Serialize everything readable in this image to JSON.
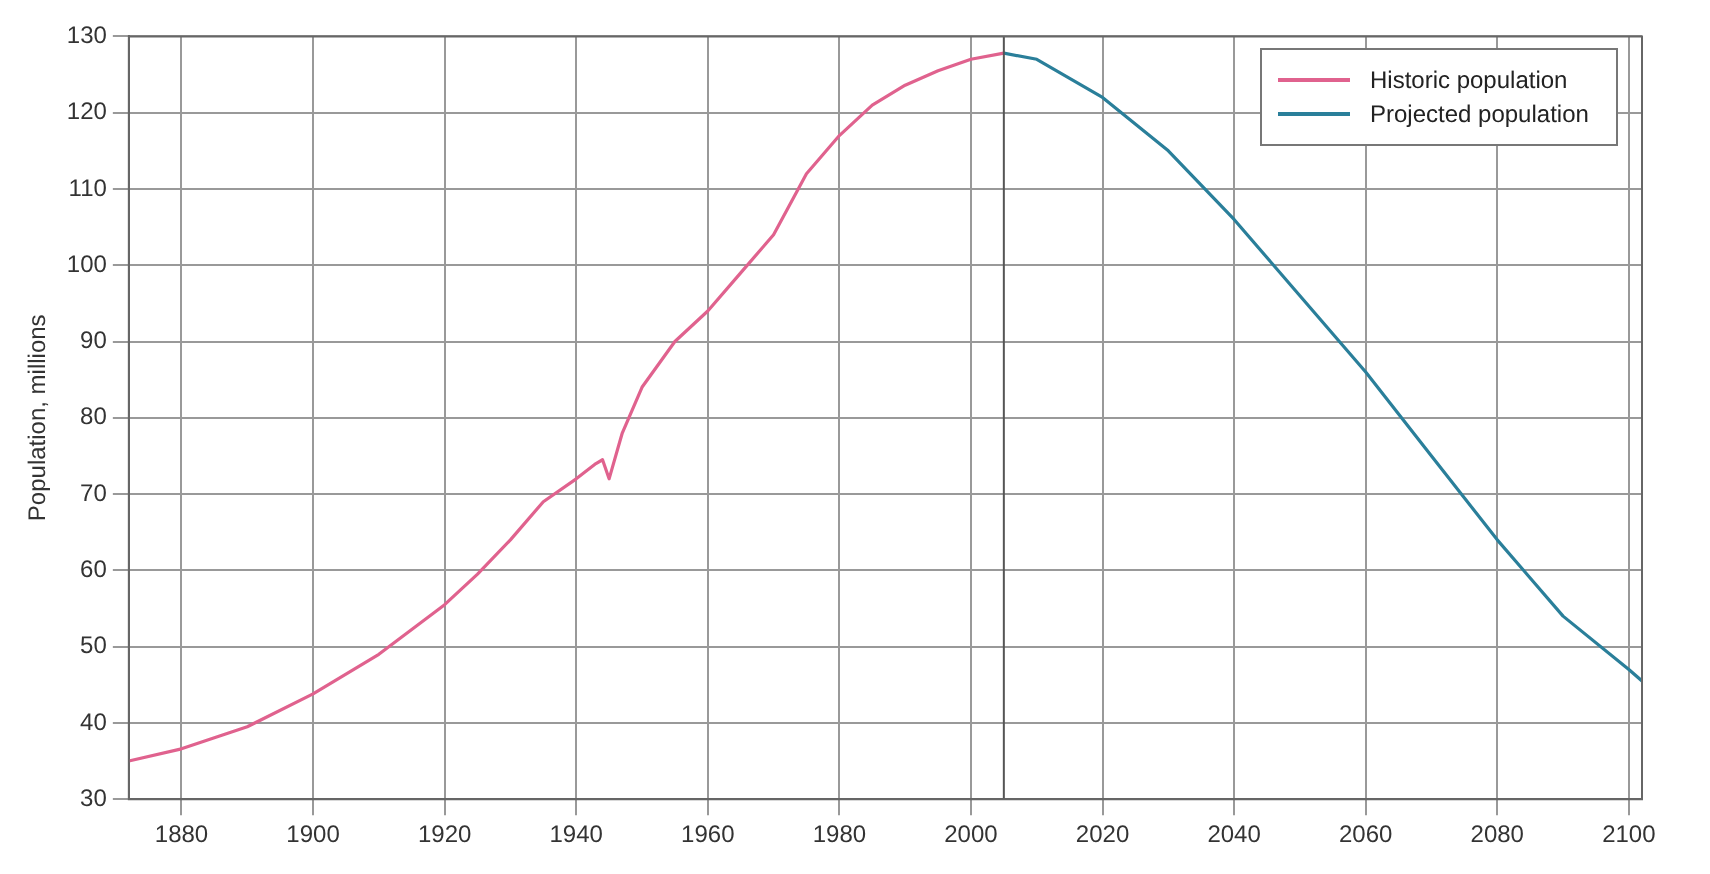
{
  "chart_data": {
    "type": "line",
    "ylabel": "Population, millions",
    "xlim": [
      1872,
      2102
    ],
    "xticks": [
      1880,
      1900,
      1920,
      1940,
      1960,
      1980,
      2000,
      2020,
      2040,
      2060,
      2080,
      2100
    ],
    "ylim": [
      30,
      130
    ],
    "yticks": [
      30,
      40,
      50,
      60,
      70,
      80,
      90,
      100,
      110,
      120,
      130
    ],
    "grid": true,
    "legend": "top right",
    "ref_lines": [
      {
        "axis": "x",
        "value": 2005,
        "color": "#555555"
      }
    ],
    "series": [
      {
        "name": "Historic population",
        "color": "#e0628e",
        "x": [
          1872,
          1880,
          1890,
          1900,
          1910,
          1920,
          1925,
          1930,
          1935,
          1940,
          1943,
          1944,
          1945,
          1947,
          1950,
          1955,
          1960,
          1965,
          1970,
          1975,
          1980,
          1985,
          1990,
          1995,
          2000,
          2005
        ],
        "values": [
          35,
          36.6,
          39.5,
          43.8,
          49,
          55.5,
          59.5,
          64,
          69,
          72,
          74,
          74.5,
          72,
          78,
          84,
          90,
          94,
          99,
          104,
          112,
          117,
          121,
          123.6,
          125.5,
          127,
          127.8
        ]
      },
      {
        "name": "Projected population",
        "color": "#2a7f9a",
        "x": [
          2005,
          2010,
          2020,
          2030,
          2040,
          2050,
          2060,
          2070,
          2080,
          2090,
          2100,
          2102
        ],
        "values": [
          127.8,
          127,
          122,
          115,
          106,
          96,
          86,
          75,
          64,
          54,
          47,
          45.5
        ]
      }
    ]
  }
}
